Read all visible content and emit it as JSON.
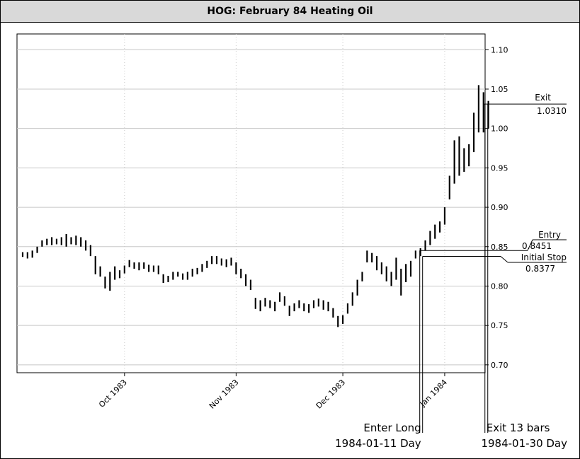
{
  "title": "HOG: February 84 Heating Oil",
  "chart_data": {
    "type": "bar",
    "subtype": "ohlc-range",
    "title": "HOG: February 84 Heating Oil",
    "xlabel": "",
    "ylabel": "",
    "ylim": [
      0.69,
      1.12
    ],
    "y_ticks": [
      "0.70",
      "0.75",
      "0.80",
      "0.85",
      "0.90",
      "0.95",
      "1.00",
      "1.05",
      "1.10"
    ],
    "y_tick_values": [
      0.7,
      0.75,
      0.8,
      0.85,
      0.9,
      0.95,
      1.0,
      1.05,
      1.1
    ],
    "x_ticks": [
      {
        "label": "Oct 1983",
        "bar": 21
      },
      {
        "label": "Nov 1983",
        "bar": 44
      },
      {
        "label": "Dec 1983",
        "bar": 66
      },
      {
        "label": "Jan 1984",
        "bar": 87
      }
    ],
    "grid": true,
    "bars": [
      [
        0.837,
        0.843
      ],
      [
        0.835,
        0.843
      ],
      [
        0.836,
        0.845
      ],
      [
        0.842,
        0.85
      ],
      [
        0.85,
        0.858
      ],
      [
        0.852,
        0.86
      ],
      [
        0.852,
        0.862
      ],
      [
        0.853,
        0.86
      ],
      [
        0.852,
        0.862
      ],
      [
        0.85,
        0.866
      ],
      [
        0.853,
        0.862
      ],
      [
        0.852,
        0.864
      ],
      [
        0.85,
        0.862
      ],
      [
        0.845,
        0.858
      ],
      [
        0.838,
        0.852
      ],
      [
        0.815,
        0.838
      ],
      [
        0.812,
        0.825
      ],
      [
        0.797,
        0.812
      ],
      [
        0.794,
        0.818
      ],
      [
        0.808,
        0.825
      ],
      [
        0.81,
        0.82
      ],
      [
        0.816,
        0.826
      ],
      [
        0.824,
        0.833
      ],
      [
        0.822,
        0.83
      ],
      [
        0.82,
        0.83
      ],
      [
        0.822,
        0.83
      ],
      [
        0.818,
        0.827
      ],
      [
        0.818,
        0.826
      ],
      [
        0.815,
        0.826
      ],
      [
        0.804,
        0.815
      ],
      [
        0.805,
        0.813
      ],
      [
        0.808,
        0.818
      ],
      [
        0.812,
        0.818
      ],
      [
        0.808,
        0.816
      ],
      [
        0.808,
        0.818
      ],
      [
        0.812,
        0.822
      ],
      [
        0.815,
        0.823
      ],
      [
        0.818,
        0.828
      ],
      [
        0.823,
        0.832
      ],
      [
        0.828,
        0.838
      ],
      [
        0.828,
        0.838
      ],
      [
        0.826,
        0.835
      ],
      [
        0.824,
        0.834
      ],
      [
        0.826,
        0.836
      ],
      [
        0.815,
        0.83
      ],
      [
        0.81,
        0.822
      ],
      [
        0.8,
        0.815
      ],
      [
        0.795,
        0.808
      ],
      [
        0.771,
        0.785
      ],
      [
        0.768,
        0.782
      ],
      [
        0.774,
        0.785
      ],
      [
        0.772,
        0.782
      ],
      [
        0.768,
        0.78
      ],
      [
        0.78,
        0.792
      ],
      [
        0.775,
        0.787
      ],
      [
        0.762,
        0.775
      ],
      [
        0.768,
        0.778
      ],
      [
        0.772,
        0.782
      ],
      [
        0.768,
        0.778
      ],
      [
        0.766,
        0.777
      ],
      [
        0.772,
        0.782
      ],
      [
        0.774,
        0.784
      ],
      [
        0.77,
        0.782
      ],
      [
        0.768,
        0.78
      ],
      [
        0.76,
        0.772
      ],
      [
        0.748,
        0.762
      ],
      [
        0.752,
        0.763
      ],
      [
        0.765,
        0.778
      ],
      [
        0.775,
        0.792
      ],
      [
        0.788,
        0.808
      ],
      [
        0.806,
        0.818
      ],
      [
        0.83,
        0.845
      ],
      [
        0.83,
        0.842
      ],
      [
        0.82,
        0.838
      ],
      [
        0.815,
        0.83
      ],
      [
        0.806,
        0.825
      ],
      [
        0.8,
        0.818
      ],
      [
        0.808,
        0.836
      ],
      [
        0.788,
        0.822
      ],
      [
        0.805,
        0.828
      ],
      [
        0.812,
        0.832
      ],
      [
        0.835,
        0.845
      ],
      [
        0.838,
        0.848
      ],
      [
        0.845,
        0.858
      ],
      [
        0.852,
        0.87
      ],
      [
        0.86,
        0.878
      ],
      [
        0.868,
        0.882
      ],
      [
        0.878,
        0.9
      ],
      [
        0.91,
        0.94
      ],
      [
        0.93,
        0.985
      ],
      [
        0.94,
        0.99
      ],
      [
        0.945,
        0.975
      ],
      [
        0.952,
        0.98
      ],
      [
        0.97,
        1.02
      ],
      [
        0.995,
        1.055
      ],
      [
        0.995,
        1.046
      ],
      [
        1.0,
        1.035
      ]
    ],
    "annotations": {
      "exit_label": "Exit",
      "exit_value": "1.0310",
      "exit_price": 1.031,
      "entry_label": "Entry",
      "entry_value": "0.8451",
      "entry_price": 0.8451,
      "stop_label": "Initial Stop",
      "stop_value": "0.8377",
      "stop_price": 0.8377,
      "enter_long_label": "Enter Long",
      "enter_long_date": "1984-01-11 Day",
      "enter_bar": 82,
      "exit_bars_label": "Exit 13 bars",
      "exit_date": "1984-01-30 Day",
      "exit_bar": 95
    }
  },
  "colors": {
    "bars": "#000000",
    "grid": "#c8c8c8",
    "title_bg": "#d9d9d9"
  }
}
